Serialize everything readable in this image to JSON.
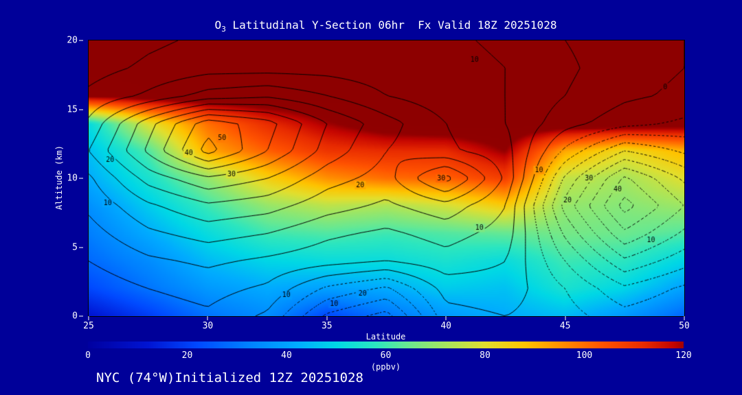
{
  "title": {
    "species": "O",
    "species_sub": "3",
    "rest": " Latitudinal Y-Section 06hr  Fx Valid 18Z 20251028"
  },
  "footer": {
    "text": "NYC (74°W)Initialized 12Z 20251028"
  },
  "axes": {
    "x_label": "Latitude",
    "y_label": "Altitude (km)",
    "x_range": [
      25,
      50
    ],
    "y_range": [
      0,
      20
    ],
    "x_ticks": [
      25,
      30,
      35,
      40,
      45,
      50
    ],
    "y_ticks": [
      0,
      5,
      10,
      15,
      20
    ]
  },
  "colorbar": {
    "label": "(ppbv)",
    "min": 0,
    "max": 120,
    "ticks": [
      0,
      20,
      40,
      60,
      80,
      100,
      120
    ]
  },
  "colors": {
    "background": "#000099",
    "text": "#ffffff",
    "contour_line": "#000000"
  },
  "chart_data": {
    "type": "heatmap",
    "subtype": "filled-contour-cross-section",
    "units": "ppbv",
    "x_label": "Latitude",
    "y_label": "Altitude (km)",
    "x_values": [
      25,
      27.5,
      30,
      32.5,
      35,
      37.5,
      40,
      42.5,
      45,
      47.5,
      50
    ],
    "y_values_top_to_bottom": [
      20,
      18,
      16,
      14,
      12,
      10,
      8,
      6,
      4,
      2,
      0
    ],
    "fill_grid": [
      [
        128,
        128,
        128,
        128,
        128,
        128,
        128,
        128,
        128,
        128,
        128
      ],
      [
        128,
        128,
        128,
        128,
        128,
        128,
        128,
        128,
        128,
        128,
        128
      ],
      [
        122,
        126,
        128,
        128,
        128,
        128,
        128,
        128,
        128,
        128,
        128
      ],
      [
        52,
        80,
        100,
        112,
        120,
        126,
        128,
        128,
        128,
        128,
        126
      ],
      [
        46,
        62,
        92,
        102,
        110,
        112,
        112,
        121,
        92,
        82,
        90
      ],
      [
        42,
        55,
        70,
        85,
        95,
        100,
        102,
        108,
        76,
        72,
        80
      ],
      [
        36,
        48,
        60,
        70,
        75,
        73,
        78,
        86,
        70,
        68,
        71
      ],
      [
        32,
        42,
        52,
        60,
        62,
        60,
        62,
        64,
        66,
        65,
        62
      ],
      [
        28,
        35,
        45,
        50,
        52,
        52,
        55,
        52,
        60,
        58,
        50
      ],
      [
        22,
        30,
        38,
        42,
        40,
        42,
        48,
        46,
        55,
        50,
        40
      ],
      [
        12,
        20,
        30,
        35,
        22,
        30,
        38,
        42,
        45,
        38,
        28
      ]
    ],
    "contour_grid": [
      [
        6,
        9,
        11,
        11,
        11,
        11,
        11,
        9,
        5,
        2,
        0
      ],
      [
        8,
        11,
        13,
        13,
        13,
        12,
        12,
        10,
        6,
        2,
        0
      ],
      [
        11,
        16,
        22,
        24,
        20,
        15,
        12,
        10,
        5,
        1,
        -1
      ],
      [
        16,
        33,
        48,
        42,
        30,
        22,
        15,
        10,
        2,
        -3,
        -6
      ],
      [
        20,
        36,
        52,
        40,
        28,
        20,
        16,
        12,
        -6,
        -20,
        -14
      ],
      [
        14,
        27,
        34,
        30,
        22,
        18,
        32,
        14,
        -16,
        -36,
        -24
      ],
      [
        11,
        19,
        24,
        22,
        17,
        14,
        18,
        10,
        -22,
        -42,
        -30
      ],
      [
        8,
        14,
        17,
        15,
        11,
        9,
        12,
        8,
        -16,
        -34,
        -24
      ],
      [
        5,
        9,
        11,
        9,
        7,
        5,
        8,
        5,
        -10,
        -24,
        -17
      ],
      [
        2,
        5,
        7,
        4,
        -6,
        -11,
        2,
        3,
        -5,
        -14,
        -9
      ],
      [
        0,
        2,
        4,
        -1,
        -16,
        -22,
        -2,
        0,
        -3,
        -8,
        -5
      ]
    ],
    "contour_min": -40,
    "contour_max": 50,
    "contour_interval": 5,
    "contour_labels": [
      {
        "lat": 30.6,
        "alt": 12.9,
        "text": "50"
      },
      {
        "lat": 29.2,
        "alt": 11.8,
        "text": "40"
      },
      {
        "lat": 31.0,
        "alt": 10.3,
        "text": "30"
      },
      {
        "lat": 25.9,
        "alt": 11.3,
        "text": "20"
      },
      {
        "lat": 25.8,
        "alt": 8.2,
        "text": "10"
      },
      {
        "lat": 36.4,
        "alt": 9.5,
        "text": "20"
      },
      {
        "lat": 39.8,
        "alt": 10.0,
        "text": "30"
      },
      {
        "lat": 41.4,
        "alt": 6.4,
        "text": "10"
      },
      {
        "lat": 33.3,
        "alt": 1.5,
        "text": "10"
      },
      {
        "lat": 35.3,
        "alt": 0.9,
        "text": "10"
      },
      {
        "lat": 36.5,
        "alt": 1.6,
        "text": "20"
      },
      {
        "lat": 43.9,
        "alt": 10.6,
        "text": "10"
      },
      {
        "lat": 45.1,
        "alt": 8.4,
        "text": "20"
      },
      {
        "lat": 46.0,
        "alt": 10.0,
        "text": "30"
      },
      {
        "lat": 47.2,
        "alt": 9.2,
        "text": "40"
      },
      {
        "lat": 48.6,
        "alt": 5.5,
        "text": "10"
      },
      {
        "lat": 41.2,
        "alt": 18.6,
        "text": "10"
      },
      {
        "lat": 49.2,
        "alt": 16.6,
        "text": "0"
      }
    ],
    "palette": [
      [
        0,
        "#0000a0"
      ],
      [
        12,
        "#0014d2"
      ],
      [
        22,
        "#0049ff"
      ],
      [
        32,
        "#0080ff"
      ],
      [
        42,
        "#00acff"
      ],
      [
        50,
        "#00d8e6"
      ],
      [
        58,
        "#2ce6c0"
      ],
      [
        64,
        "#66e894"
      ],
      [
        72,
        "#a6e65e"
      ],
      [
        80,
        "#e2df2e"
      ],
      [
        88,
        "#ffc400"
      ],
      [
        96,
        "#ff8a00"
      ],
      [
        104,
        "#ff5200"
      ],
      [
        112,
        "#e92c00"
      ],
      [
        118,
        "#c40400"
      ],
      [
        121,
        "#900000"
      ],
      [
        132,
        "#8b0000"
      ]
    ]
  }
}
